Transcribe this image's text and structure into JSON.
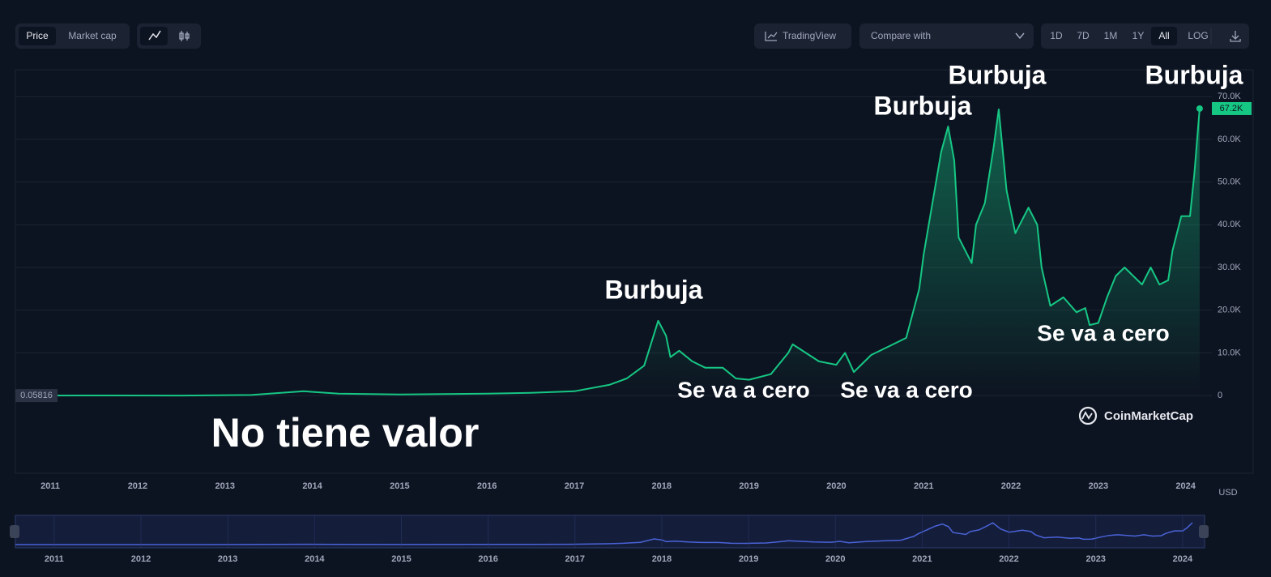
{
  "ui": {
    "toggles": [
      "Price",
      "Market cap"
    ],
    "tradingview": "TradingView",
    "compare": "Compare with",
    "ranges": [
      "1D",
      "7D",
      "1M",
      "1Y",
      "All",
      "LOG"
    ],
    "currency": "USD",
    "brand": "CoinMarketCap"
  },
  "chart_data": {
    "type": "area",
    "annotations": [
      "Burbuja",
      "Burbuja",
      "Burbuja",
      "Burbuja",
      "Se va a cero",
      "Se va a cero",
      "Se va a cero",
      "No tiene valor"
    ],
    "x": [
      2010.6,
      2011.5,
      2012.5,
      2013.3,
      2013.9,
      2014.3,
      2015.0,
      2016.0,
      2016.5,
      2017.0,
      2017.4,
      2017.6,
      2017.8,
      2017.96,
      2018.05,
      2018.1,
      2018.2,
      2018.35,
      2018.5,
      2018.7,
      2018.85,
      2019.0,
      2019.25,
      2019.45,
      2019.5,
      2019.65,
      2019.8,
      2020.0,
      2020.1,
      2020.2,
      2020.4,
      2020.6,
      2020.8,
      2020.95,
      2021.0,
      2021.1,
      2021.2,
      2021.28,
      2021.35,
      2021.4,
      2021.55,
      2021.6,
      2021.7,
      2021.8,
      2021.86,
      2021.95,
      2022.05,
      2022.2,
      2022.3,
      2022.35,
      2022.45,
      2022.6,
      2022.75,
      2022.85,
      2022.9,
      2023.0,
      2023.1,
      2023.2,
      2023.3,
      2023.5,
      2023.6,
      2023.7,
      2023.8,
      2023.85,
      2023.95,
      2024.05,
      2024.1,
      2024.16
    ],
    "series": [
      {
        "name": "Price",
        "color": "#16c784",
        "values": [
          0.05816,
          15,
          7,
          130,
          1000,
          450,
          250,
          430,
          650,
          1000,
          2500,
          4000,
          7000,
          17500,
          14000,
          9000,
          10500,
          8000,
          6500,
          6500,
          4000,
          3700,
          5000,
          10000,
          12000,
          10000,
          8000,
          7200,
          10000,
          5500,
          9500,
          11500,
          13500,
          25000,
          33000,
          45000,
          57000,
          63000,
          55000,
          37000,
          31000,
          40000,
          45000,
          58000,
          67000,
          48000,
          38000,
          44000,
          40000,
          30000,
          21000,
          23000,
          19500,
          20500,
          16500,
          17000,
          23000,
          28000,
          30000,
          26000,
          30000,
          26000,
          27000,
          34000,
          42000,
          42000,
          52000,
          67200
        ]
      }
    ],
    "start_tag": {
      "value": 0.05816,
      "label": "0.05816"
    },
    "end_tag": {
      "value": 67200,
      "label": "67.2K"
    },
    "xlim": [
      2010.6,
      2024.3
    ],
    "xticks": [
      2011,
      2012,
      2013,
      2014,
      2015,
      2016,
      2017,
      2018,
      2019,
      2020,
      2021,
      2022,
      2023,
      2024
    ],
    "ylim": [
      -18200,
      76300
    ],
    "yticks": [
      0,
      {
        "value": 10000,
        "label": "10.0K"
      },
      {
        "value": 20000,
        "label": "20.0K"
      },
      {
        "value": 30000,
        "label": "30.0K"
      },
      {
        "value": 40000,
        "label": "40.0K"
      },
      {
        "value": 50000,
        "label": "50.0K"
      },
      {
        "value": 60000,
        "label": "60.0K"
      },
      {
        "value": 70000,
        "label": "70.0K"
      }
    ],
    "grid": true
  }
}
